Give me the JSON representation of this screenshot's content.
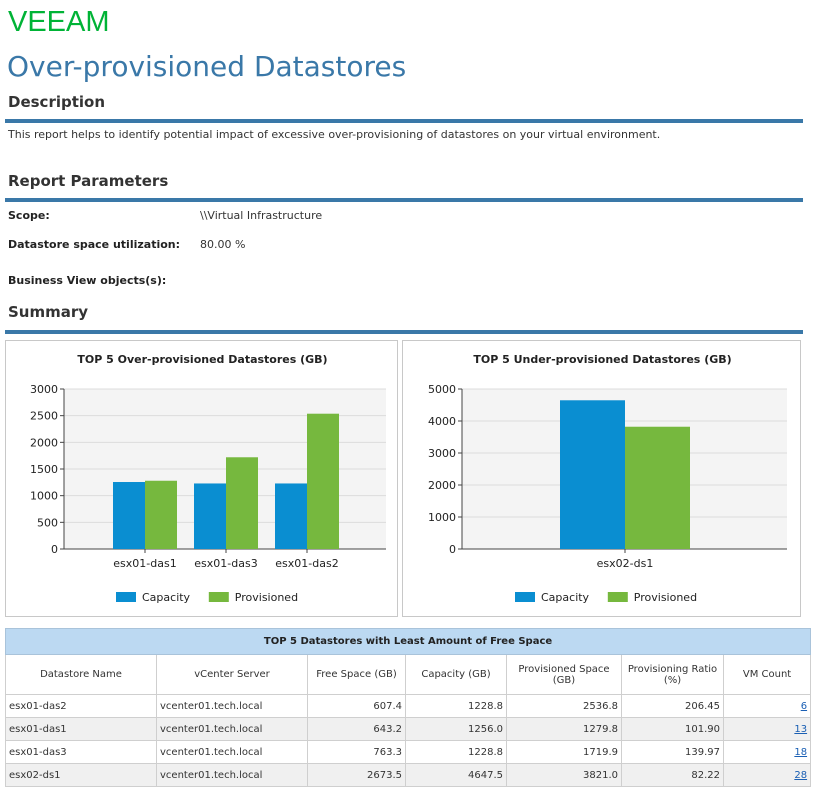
{
  "brand": {
    "logo_text": "VEEAM",
    "accent": "#3a78a8",
    "logo_color": "#00b336"
  },
  "title": "Over-provisioned Datastores",
  "description": {
    "heading": "Description",
    "text": "This report helps to identify potential impact of excessive over-provisioning of datastores on your virtual environment."
  },
  "parameters": {
    "heading": "Report Parameters",
    "scope_label": "Scope:",
    "scope_value": "\\\\Virtual Infrastructure",
    "utilization_label": "Datastore space utilization:",
    "utilization_value": "80.00 %",
    "business_view_label": "Business View objects(s):"
  },
  "summary": {
    "heading": "Summary"
  },
  "chart_data": [
    {
      "type": "bar",
      "title": "TOP 5 Over-provisioned Datastores (GB)",
      "categories": [
        "esx01-das1",
        "esx01-das3",
        "esx01-das2"
      ],
      "series": [
        {
          "name": "Capacity",
          "values": [
            1256.0,
            1228.8,
            1228.8
          ],
          "color": "#0a8ed1"
        },
        {
          "name": "Provisioned",
          "values": [
            1279.8,
            1719.9,
            2536.8
          ],
          "color": "#76b83e"
        }
      ],
      "ylim": [
        0,
        3000
      ],
      "yticks": [
        0,
        500,
        1000,
        1500,
        2000,
        2500,
        3000
      ],
      "grid": true,
      "legend": "bottom"
    },
    {
      "type": "bar",
      "title": "TOP 5 Under-provisioned Datastores (GB)",
      "categories": [
        "esx02-ds1"
      ],
      "series": [
        {
          "name": "Capacity",
          "values": [
            4647.5
          ],
          "color": "#0a8ed1"
        },
        {
          "name": "Provisioned",
          "values": [
            3821.0
          ],
          "color": "#76b83e"
        }
      ],
      "ylim": [
        0,
        5000
      ],
      "yticks": [
        0,
        1000,
        2000,
        3000,
        4000,
        5000
      ],
      "grid": true,
      "legend": "bottom"
    }
  ],
  "table": {
    "title": "TOP 5 Datastores with Least Amount of Free Space",
    "columns": [
      "Datastore Name",
      "vCenter Server",
      "Free Space (GB)",
      "Capacity (GB)",
      "Provisioned Space (GB)",
      "Provisioning Ratio (%)",
      "VM Count"
    ],
    "rows": [
      [
        "esx01-das2",
        "vcenter01.tech.local",
        "607.4",
        "1228.8",
        "2536.8",
        "206.45",
        "6"
      ],
      [
        "esx01-das1",
        "vcenter01.tech.local",
        "643.2",
        "1256.0",
        "1279.8",
        "101.90",
        "13"
      ],
      [
        "esx01-das3",
        "vcenter01.tech.local",
        "763.3",
        "1228.8",
        "1719.9",
        "139.97",
        "18"
      ],
      [
        "esx02-ds1",
        "vcenter01.tech.local",
        "2673.5",
        "4647.5",
        "3821.0",
        "82.22",
        "28"
      ]
    ]
  }
}
